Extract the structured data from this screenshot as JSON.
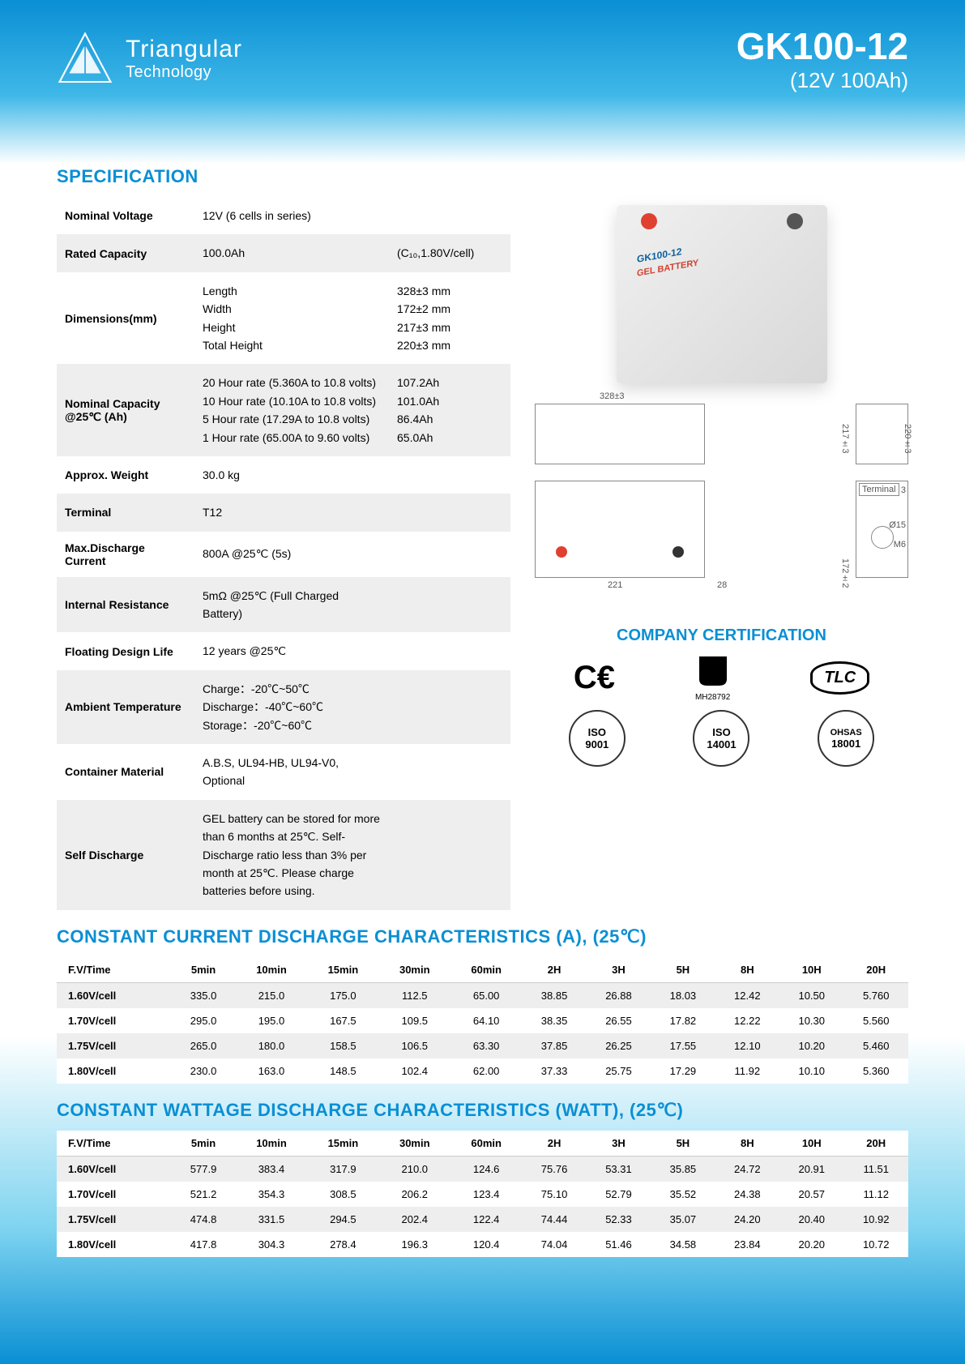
{
  "header": {
    "brand_name": "Triangular",
    "brand_sub": "Technology",
    "model": "GK100-12",
    "model_sub": "(12V 100Ah)"
  },
  "sections": {
    "spec_title": "SPECIFICATION",
    "cert_title": "COMPANY CERTIFICATION",
    "cc_title": "CONSTANT CURRENT DISCHARGE CHARACTERISTICS (A), (25℃)",
    "cw_title": "CONSTANT WATTAGE DISCHARGE CHARACTERISTICS (WATT), (25℃)"
  },
  "spec": {
    "r0": {
      "label": "Nominal Voltage",
      "v1": "12V (6 cells in series)",
      "v2": ""
    },
    "r1": {
      "label": "Rated Capacity",
      "v1": "100.0Ah",
      "v2": "(C₁₀,1.80V/cell)"
    },
    "r2": {
      "label": "Dimensions(mm)",
      "v1": "Length\nWidth\nHeight\nTotal Height",
      "v2": "328±3 mm\n172±2 mm\n217±3 mm\n220±3 mm"
    },
    "r3": {
      "label": "Nominal Capacity @25℃ (Ah)",
      "v1": "20 Hour rate (5.360A to 10.8 volts)\n10 Hour rate (10.10A to 10.8 volts)\n  5 Hour rate (17.29A to 10.8 volts)\n  1 Hour rate (65.00A to 9.60 volts)",
      "v2": "107.2Ah\n101.0Ah\n86.4Ah\n65.0Ah"
    },
    "r4": {
      "label": "Approx. Weight",
      "v1": "30.0 kg",
      "v2": ""
    },
    "r5": {
      "label": "Terminal",
      "v1": "T12",
      "v2": ""
    },
    "r6": {
      "label": "Max.Discharge Current",
      "v1": "800A @25℃  (5s)",
      "v2": ""
    },
    "r7": {
      "label": "Internal Resistance",
      "v1": "5mΩ @25℃  (Full Charged Battery)",
      "v2": ""
    },
    "r8": {
      "label": "Floating Design Life",
      "v1": "12 years @25℃",
      "v2": ""
    },
    "r9": {
      "label": "Ambient Temperature",
      "v1": "Charge：-20℃~50℃\nDischarge：-40℃~60℃\nStorage：-20℃~60℃",
      "v2": ""
    },
    "r10": {
      "label": "Container Material",
      "v1": "A.B.S, UL94-HB, UL94-V0, Optional",
      "v2": ""
    },
    "r11": {
      "label": "Self Discharge",
      "v1": "GEL battery can be stored for more than 6 months at 25℃. Self-Discharge ratio less than 3% per month at 25℃. Please charge batteries before using.",
      "v2": ""
    }
  },
  "product_labels": {
    "model": "GK100-12",
    "type": "GEL BATTERY"
  },
  "diagram": {
    "d_328": "328±3",
    "d_217": "217±3",
    "d_220": "220±3",
    "d_172": "172±2",
    "d_221": "221",
    "d_28": "28",
    "d_15": "Ø15",
    "d_m6": "M6",
    "d_3": "3",
    "term": "Terminal"
  },
  "certs": {
    "ce": "CE",
    "ul": "MH28792",
    "tlc": "TLC",
    "iso9": "ISO",
    "iso9n": "9001",
    "iso14": "ISO",
    "iso14n": "14001",
    "ohsas": "OHSAS",
    "ohsasn": "18001"
  },
  "cc_head": [
    "F.V/Time",
    "5min",
    "10min",
    "15min",
    "30min",
    "60min",
    "2H",
    "3H",
    "5H",
    "8H",
    "10H",
    "20H"
  ],
  "cc_rows": [
    [
      "1.60V/cell",
      "335.0",
      "215.0",
      "175.0",
      "112.5",
      "65.00",
      "38.85",
      "26.88",
      "18.03",
      "12.42",
      "10.50",
      "5.760"
    ],
    [
      "1.70V/cell",
      "295.0",
      "195.0",
      "167.5",
      "109.5",
      "64.10",
      "38.35",
      "26.55",
      "17.82",
      "12.22",
      "10.30",
      "5.560"
    ],
    [
      "1.75V/cell",
      "265.0",
      "180.0",
      "158.5",
      "106.5",
      "63.30",
      "37.85",
      "26.25",
      "17.55",
      "12.10",
      "10.20",
      "5.460"
    ],
    [
      "1.80V/cell",
      "230.0",
      "163.0",
      "148.5",
      "102.4",
      "62.00",
      "37.33",
      "25.75",
      "17.29",
      "11.92",
      "10.10",
      "5.360"
    ]
  ],
  "cw_rows": [
    [
      "1.60V/cell",
      "577.9",
      "383.4",
      "317.9",
      "210.0",
      "124.6",
      "75.76",
      "53.31",
      "35.85",
      "24.72",
      "20.91",
      "11.51"
    ],
    [
      "1.70V/cell",
      "521.2",
      "354.3",
      "308.5",
      "206.2",
      "123.4",
      "75.10",
      "52.79",
      "35.52",
      "24.38",
      "20.57",
      "11.12"
    ],
    [
      "1.75V/cell",
      "474.8",
      "331.5",
      "294.5",
      "202.4",
      "122.4",
      "74.44",
      "52.33",
      "35.07",
      "24.20",
      "20.40",
      "10.92"
    ],
    [
      "1.80V/cell",
      "417.8",
      "304.3",
      "278.4",
      "196.3",
      "120.4",
      "74.04",
      "51.46",
      "34.58",
      "23.84",
      "20.20",
      "10.72"
    ]
  ]
}
